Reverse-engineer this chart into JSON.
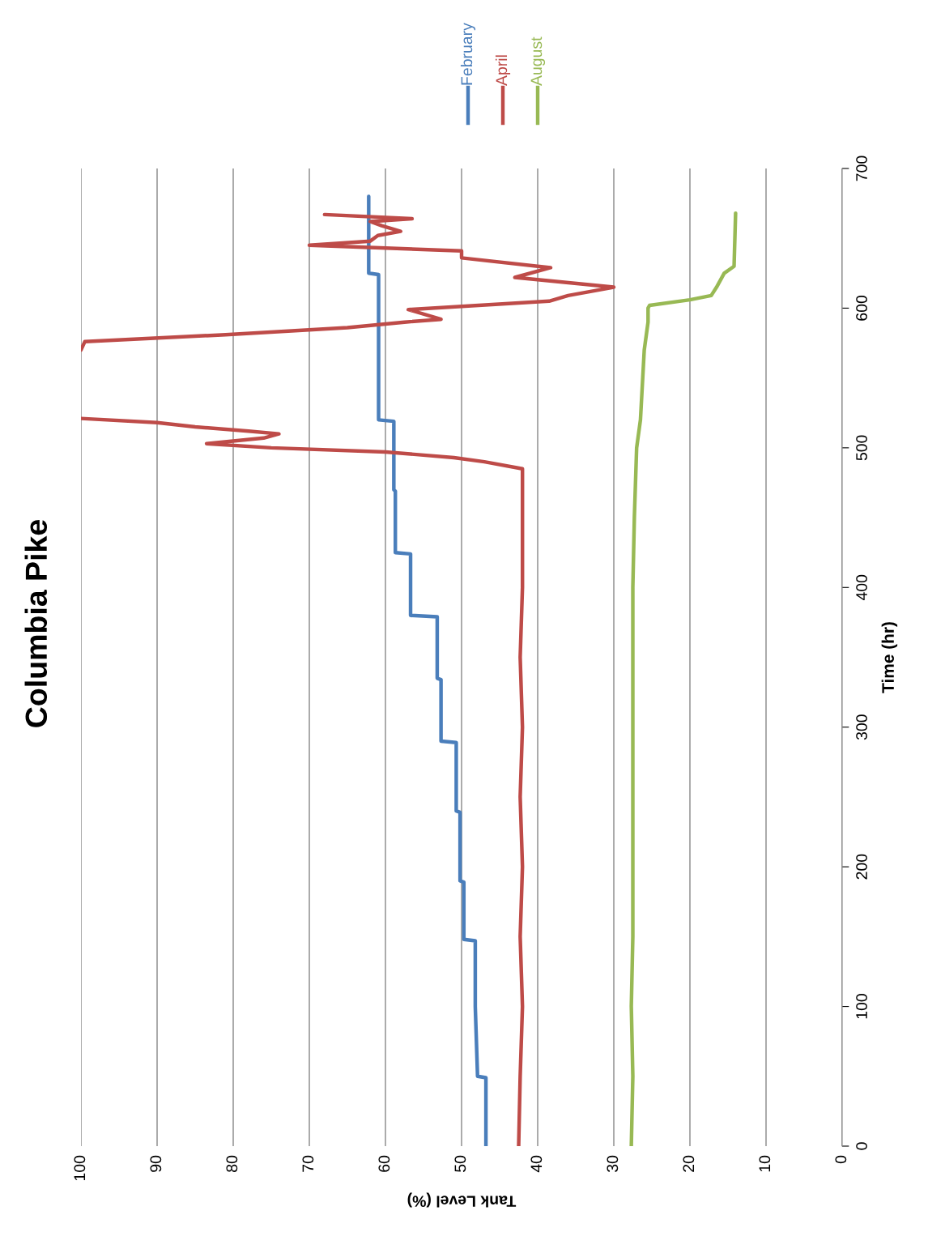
{
  "chart_data": {
    "type": "line",
    "title": "Columbia Pike",
    "xlabel": "Tank Level (%)",
    "ylabel": "Time (hr)",
    "xlim": [
      100,
      0
    ],
    "xticks": [
      0,
      10,
      20,
      30,
      40,
      50,
      60,
      70,
      80,
      90,
      100
    ],
    "ylim": [
      0,
      700
    ],
    "yticks": [
      0,
      100,
      200,
      300,
      400,
      500,
      600,
      700
    ],
    "grid": "x",
    "legend": "top right",
    "marker": "none",
    "line_style": "solid",
    "series": [
      {
        "name": "February",
        "color": "#4a7ebb",
        "x": [
          46.8,
          46.8,
          47.9,
          48.2,
          48.2,
          49.7,
          49.7,
          50.2,
          50.2,
          50.7,
          50.7,
          52.7,
          52.7,
          53.2,
          53.2,
          56.7,
          56.7,
          58.7,
          58.7,
          58.9,
          58.9,
          60.9,
          60.9,
          62.2,
          62.2
        ],
        "values": [
          0,
          49,
          50,
          100,
          147,
          148,
          189,
          190,
          239,
          240,
          289,
          290,
          334,
          335,
          379,
          380,
          424,
          425,
          469,
          470,
          519,
          520,
          624,
          625,
          680
        ]
      },
      {
        "name": "April",
        "color": "#be4b48",
        "x": [
          42.5,
          42.3,
          42.0,
          42.3,
          42.0,
          42.3,
          42.0,
          42.3,
          42.0,
          42.0,
          42.0,
          47,
          51,
          60,
          75,
          83.5,
          76,
          74,
          78,
          85,
          90,
          100,
          null,
          100,
          99.5,
          81,
          65,
          57.5,
          52.7,
          57,
          38.5,
          36,
          30,
          43,
          38.3,
          50,
          50,
          70,
          62,
          61,
          58,
          60.5,
          62,
          56.5,
          68
        ],
        "values": [
          0,
          50,
          100,
          150,
          200,
          250,
          300,
          350,
          400,
          450,
          485,
          490,
          493,
          497,
          500,
          503,
          507,
          510,
          512,
          515,
          518,
          521,
          null,
          570,
          576,
          581,
          586,
          590,
          592,
          599,
          605,
          609,
          615,
          622,
          629,
          636,
          641,
          645,
          648,
          652,
          655,
          659,
          662,
          664,
          667
        ]
      },
      {
        "name": "August",
        "color": "#98b954",
        "x": [
          27.7,
          27.5,
          27.7,
          27.5,
          27.5,
          27.5,
          27.5,
          27.5,
          27.5,
          27.3,
          27.0,
          26.5,
          26.0,
          25.5,
          25.5,
          25.3,
          20,
          17.2,
          16.5,
          15.5,
          14.2,
          14.0
        ],
        "values": [
          0,
          50,
          100,
          150,
          200,
          250,
          300,
          350,
          400,
          450,
          500,
          520,
          570,
          590,
          600,
          602,
          606,
          609,
          615,
          625,
          630,
          668
        ]
      }
    ]
  }
}
